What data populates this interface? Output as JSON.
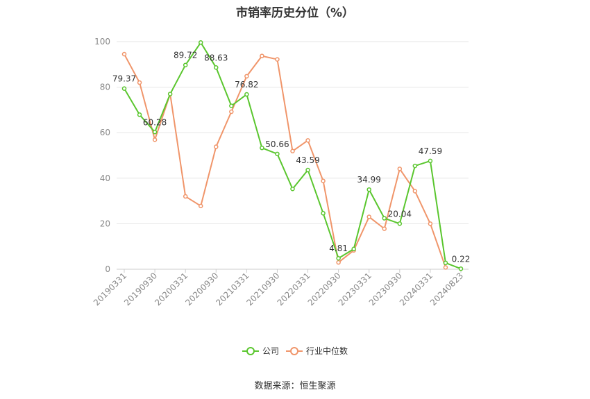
{
  "chart_data": {
    "type": "line",
    "title": "市销率历史分位（%）",
    "source": "数据来源：恒生聚源",
    "ylim": [
      0,
      100
    ],
    "yticks": [
      0,
      20,
      40,
      60,
      80,
      100
    ],
    "x_ticklabels": [
      "20190331",
      "20190930",
      "20200331",
      "20200930",
      "20210331",
      "20210930",
      "20220331",
      "20220930",
      "20230331",
      "20230930",
      "20240331",
      "20240823"
    ],
    "grid": true,
    "legend_position": "bottom",
    "colors": {
      "company": "#5ac62e",
      "industry": "#f0956a",
      "grid": "#e6e6e6",
      "axis": "#cccccc"
    },
    "series": [
      {
        "name": "公司",
        "values": [
          79.37,
          67.9,
          60.28,
          77.0,
          89.72,
          99.6,
          88.63,
          71.8,
          76.82,
          53.3,
          50.66,
          35.3,
          43.59,
          24.6,
          4.81,
          8.9,
          34.99,
          22.4,
          20.04,
          45.4,
          47.59,
          2.8,
          0.22
        ],
        "labels": [
          "79.37",
          null,
          "60.28",
          null,
          "89.72",
          null,
          "88.63",
          null,
          "76.82",
          null,
          "50.66",
          null,
          "43.59",
          null,
          "4.81",
          null,
          "34.99",
          null,
          "20.04",
          null,
          "47.59",
          null,
          "0.22"
        ]
      },
      {
        "name": "行业中位数",
        "values": [
          94.5,
          82.0,
          56.9,
          77.0,
          32.0,
          27.8,
          53.8,
          69.2,
          84.8,
          93.7,
          92.2,
          51.9,
          56.6,
          38.8,
          3.0,
          8.3,
          23.0,
          17.8,
          44.1,
          34.3,
          20.0,
          0.8,
          null
        ]
      }
    ]
  }
}
